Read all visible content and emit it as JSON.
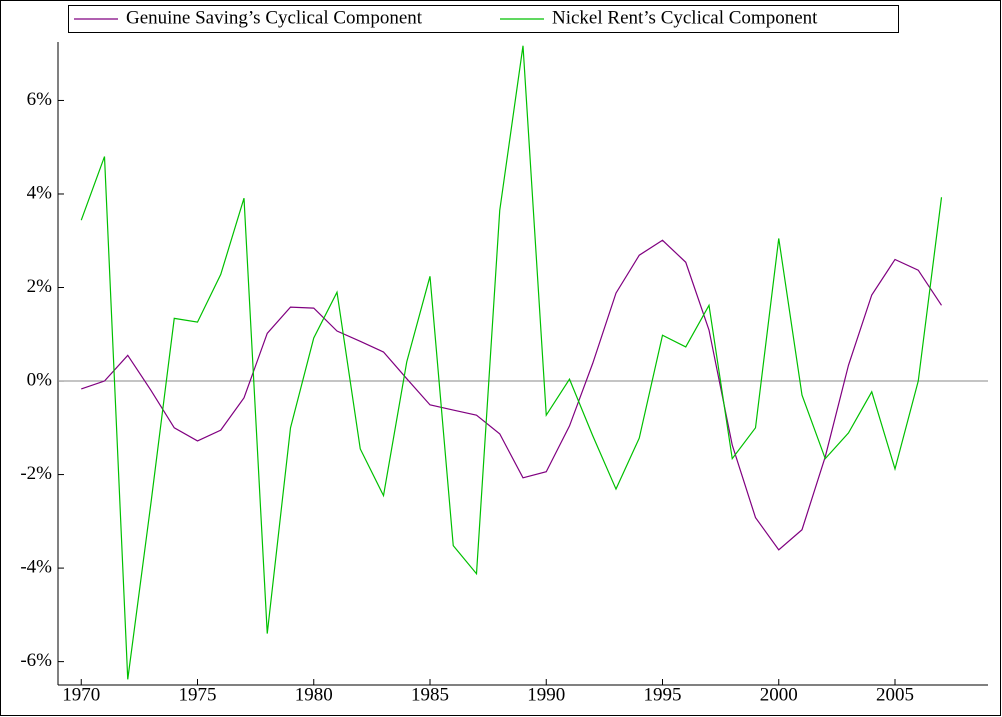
{
  "chart_data": {
    "type": "line",
    "x": [
      1970,
      1971,
      1972,
      1973,
      1974,
      1975,
      1976,
      1977,
      1978,
      1979,
      1980,
      1981,
      1982,
      1983,
      1984,
      1985,
      1986,
      1987,
      1988,
      1989,
      1990,
      1991,
      1992,
      1993,
      1994,
      1995,
      1996,
      1997,
      1998,
      1999,
      2000,
      2001,
      2002,
      2003,
      2004,
      2005,
      2006,
      2007
    ],
    "series": [
      {
        "name": "Genuine Saving’s Cyclical Component",
        "color": "#800080",
        "values": [
          -0.17,
          0.0,
          0.55,
          -0.2,
          -1.0,
          -1.28,
          -1.05,
          -0.36,
          1.02,
          1.58,
          1.56,
          1.07,
          0.85,
          0.62,
          0.05,
          -0.51,
          -0.62,
          -0.73,
          -1.13,
          -2.07,
          -1.94,
          -0.96,
          0.38,
          1.88,
          2.69,
          3.01,
          2.54,
          1.09,
          -1.37,
          -2.92,
          -3.61,
          -3.18,
          -1.62,
          0.34,
          1.84,
          2.6,
          2.37,
          1.62
        ]
      },
      {
        "name": "Nickel Rent’s Cyclical Component",
        "color": "#00c000",
        "values": [
          3.44,
          4.8,
          -6.38,
          -2.6,
          1.34,
          1.26,
          2.28,
          3.91,
          -5.4,
          -1.0,
          0.92,
          1.9,
          -1.45,
          -2.45,
          0.41,
          2.24,
          -3.52,
          -4.12,
          3.65,
          7.17,
          -0.73,
          0.04,
          -1.17,
          -2.31,
          -1.22,
          0.98,
          0.73,
          1.62,
          -1.66,
          -1.0,
          3.05,
          -0.3,
          -1.66,
          -1.11,
          -0.23,
          -1.88,
          0.0,
          3.93
        ]
      }
    ],
    "xlim": [
      1969,
      2009
    ],
    "xticks": [
      1970,
      1975,
      1980,
      1985,
      1990,
      1995,
      2000,
      2005
    ],
    "ylim": [
      -6.5,
      7.25
    ],
    "yticks": [
      {
        "value": -6,
        "label": "-6%"
      },
      {
        "value": -4,
        "label": "-4%"
      },
      {
        "value": -2,
        "label": "-2%"
      },
      {
        "value": 0,
        "label": "0%"
      },
      {
        "value": 2,
        "label": "2%"
      },
      {
        "value": 4,
        "label": "4%"
      },
      {
        "value": 6,
        "label": "6%"
      }
    ],
    "legend": "top"
  }
}
